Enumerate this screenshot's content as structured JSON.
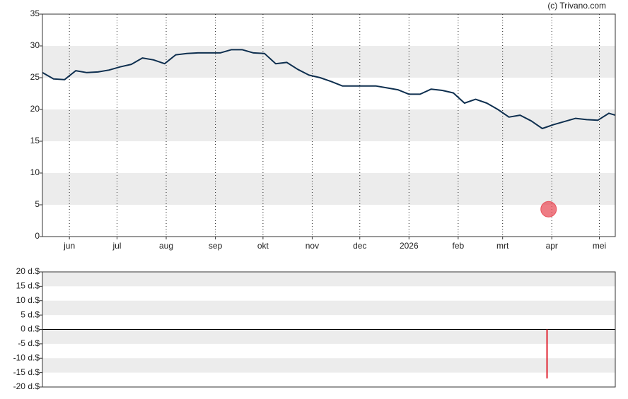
{
  "credit": "(c) Trivano.com",
  "chart_data": [
    {
      "type": "line",
      "color": "#0e2f4f",
      "line_width": 2,
      "x": [
        0,
        7,
        14,
        21,
        28,
        35,
        42,
        49,
        56,
        63,
        70,
        77,
        84,
        91,
        98,
        105,
        112,
        119,
        126,
        133,
        140,
        147,
        154,
        161,
        168,
        175,
        182,
        189,
        196,
        203,
        210,
        217,
        224,
        231,
        238,
        245,
        252,
        259,
        266,
        273,
        280,
        287,
        294,
        301,
        308,
        315,
        322,
        329,
        336,
        343,
        350,
        357,
        361
      ],
      "values": [
        25.8,
        24.8,
        24.7,
        26.1,
        25.8,
        25.9,
        26.2,
        26.7,
        27.1,
        28.1,
        27.8,
        27.2,
        28.6,
        28.8,
        28.9,
        28.9,
        28.9,
        29.4,
        29.4,
        28.9,
        28.8,
        27.2,
        27.4,
        26.3,
        25.4,
        25.0,
        24.4,
        23.7,
        23.7,
        23.7,
        23.7,
        23.4,
        23.1,
        22.4,
        22.4,
        23.2,
        23.0,
        22.6,
        21.0,
        21.6,
        21.0,
        20.0,
        18.8,
        19.1,
        18.2,
        17.0,
        17.6,
        18.1,
        18.6,
        18.4,
        18.3,
        19.4,
        19.1
      ],
      "events": {
        "x": [
          319
        ],
        "values": [
          4.3
        ],
        "color": "#e8505b"
      },
      "xlim": [
        0,
        361
      ],
      "xticks": [
        {
          "value": 17,
          "label": "jun"
        },
        {
          "value": 47,
          "label": "jul"
        },
        {
          "value": 78,
          "label": "aug"
        },
        {
          "value": 109,
          "label": "sep"
        },
        {
          "value": 139,
          "label": "okt"
        },
        {
          "value": 170,
          "label": "nov"
        },
        {
          "value": 200,
          "label": "dec"
        },
        {
          "value": 231,
          "label": "2026"
        },
        {
          "value": 262,
          "label": "feb"
        },
        {
          "value": 290,
          "label": "mrt"
        },
        {
          "value": 321,
          "label": "apr"
        },
        {
          "value": 351,
          "label": "mei"
        }
      ],
      "ylim": [
        0,
        35
      ],
      "yticks": [
        0,
        5,
        10,
        15,
        20,
        25,
        30,
        35
      ],
      "grid": "x-dotted",
      "alternate_bands": true
    },
    {
      "type": "bar",
      "color": "#e0202e",
      "x": [
        318
      ],
      "values": [
        -17
      ],
      "xlim": [
        0,
        361
      ],
      "ylim": [
        -20,
        20
      ],
      "yticks": [
        {
          "value": -20,
          "label": "-20 d.$"
        },
        {
          "value": -15,
          "label": "-15 d.$"
        },
        {
          "value": -10,
          "label": "-10 d.$"
        },
        {
          "value": -5,
          "label": "-5 d.$"
        },
        {
          "value": 0,
          "label": "0 d.$"
        },
        {
          "value": 5,
          "label": "5 d.$"
        },
        {
          "value": 10,
          "label": "10 d.$"
        },
        {
          "value": 15,
          "label": "15 d.$"
        },
        {
          "value": 20,
          "label": "20 d.$"
        }
      ],
      "zero_line": true,
      "alternate_bands": true
    }
  ]
}
